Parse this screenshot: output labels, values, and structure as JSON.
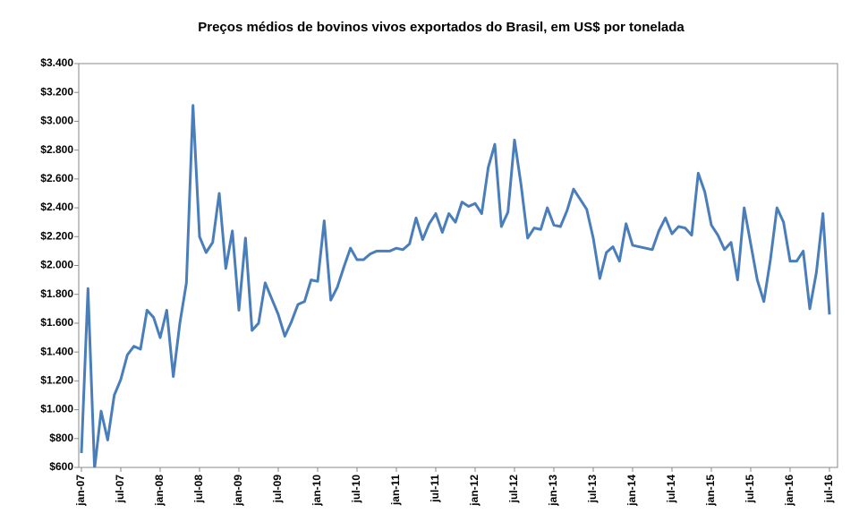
{
  "chart_data": {
    "type": "line",
    "title": "Preços médios de bovinos vivos exportados do Brasil, em US$ por tonelada",
    "categories": [
      "jan-07",
      null,
      null,
      null,
      null,
      null,
      "jul-07",
      null,
      null,
      null,
      null,
      null,
      "jan-08",
      null,
      null,
      null,
      null,
      null,
      "jul-08",
      null,
      null,
      null,
      null,
      null,
      "jan-09",
      null,
      null,
      null,
      null,
      null,
      "jul-09",
      null,
      null,
      null,
      null,
      null,
      "jan-10",
      null,
      null,
      null,
      null,
      null,
      "jul-10",
      null,
      null,
      null,
      null,
      null,
      "jan-11",
      null,
      null,
      null,
      null,
      null,
      "jul-11",
      null,
      null,
      null,
      null,
      null,
      "jan-12",
      null,
      null,
      null,
      null,
      null,
      "jul-12",
      null,
      null,
      null,
      null,
      null,
      "jan-13",
      null,
      null,
      null,
      null,
      null,
      "jul-13",
      null,
      null,
      null,
      null,
      null,
      "jan-14",
      null,
      null,
      null,
      null,
      null,
      "jul-14",
      null,
      null,
      null,
      null,
      null,
      "jan-15",
      null,
      null,
      null,
      null,
      null,
      "jul-15",
      null,
      null,
      null,
      null,
      null,
      "jan-16",
      null,
      null,
      null,
      null,
      null,
      "jul-16"
    ],
    "values": [
      700,
      1840,
      590,
      990,
      790,
      1100,
      1210,
      1380,
      1440,
      1420,
      1690,
      1640,
      1500,
      1690,
      1230,
      1600,
      1880,
      3110,
      2200,
      2090,
      2160,
      2500,
      1980,
      2240,
      1690,
      2190,
      1550,
      1600,
      1880,
      1770,
      1660,
      1510,
      1610,
      1730,
      1750,
      1900,
      1890,
      2310,
      1760,
      1850,
      1990,
      2120,
      2040,
      2040,
      2080,
      2100,
      2100,
      2100,
      2120,
      2110,
      2150,
      2330,
      2180,
      2290,
      2360,
      2230,
      2360,
      2300,
      2440,
      2410,
      2430,
      2360,
      2680,
      2840,
      2270,
      2370,
      2870,
      2560,
      2190,
      2260,
      2250,
      2400,
      2280,
      2270,
      2380,
      2530,
      2460,
      2390,
      2190,
      1910,
      2090,
      2130,
      2030,
      2290,
      2140,
      2130,
      2120,
      2110,
      2240,
      2330,
      2220,
      2270,
      2260,
      2210,
      2640,
      2510,
      2280,
      2210,
      2110,
      2160,
      1900,
      2400,
      2150,
      1900,
      1750,
      2040,
      2400,
      2300,
      2030,
      2030,
      2100,
      1700,
      1950,
      2360,
      1660
    ],
    "color": "#4a7ebb",
    "ylim": [
      600,
      3400
    ],
    "yticks": [
      {
        "value": 600,
        "label": "$600"
      },
      {
        "value": 800,
        "label": "$800"
      },
      {
        "value": 1000,
        "label": "$1.000"
      },
      {
        "value": 1200,
        "label": "$1.200"
      },
      {
        "value": 1400,
        "label": "$1.400"
      },
      {
        "value": 1600,
        "label": "$1.600"
      },
      {
        "value": 1800,
        "label": "$1.800"
      },
      {
        "value": 2000,
        "label": "$2.000"
      },
      {
        "value": 2200,
        "label": "$2.200"
      },
      {
        "value": 2400,
        "label": "$2.400"
      },
      {
        "value": 2600,
        "label": "$2.600"
      },
      {
        "value": 2800,
        "label": "$2.800"
      },
      {
        "value": 3000,
        "label": "$3.000"
      },
      {
        "value": 3200,
        "label": "$3.200"
      },
      {
        "value": 3400,
        "label": "$3.400"
      }
    ],
    "grid": false
  }
}
